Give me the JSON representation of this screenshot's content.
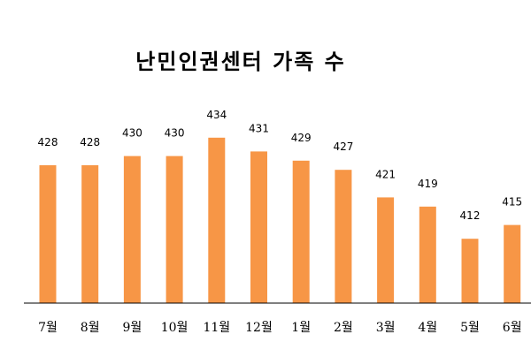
{
  "chart_data": {
    "type": "bar",
    "title": "난민인권센터 가족 수",
    "xlabel": "",
    "ylabel": "",
    "categories": [
      "7월",
      "8월",
      "9월",
      "10월",
      "11월",
      "12월",
      "1월",
      "2월",
      "3월",
      "4월",
      "5월",
      "6월"
    ],
    "values": [
      428,
      428,
      430,
      430,
      434,
      431,
      429,
      427,
      421,
      419,
      412,
      415
    ],
    "ylim": [
      398,
      438
    ],
    "grid": false,
    "legend": "none",
    "show_data_labels": true,
    "bar_color": "#F79646",
    "axis_color": "#000000"
  }
}
